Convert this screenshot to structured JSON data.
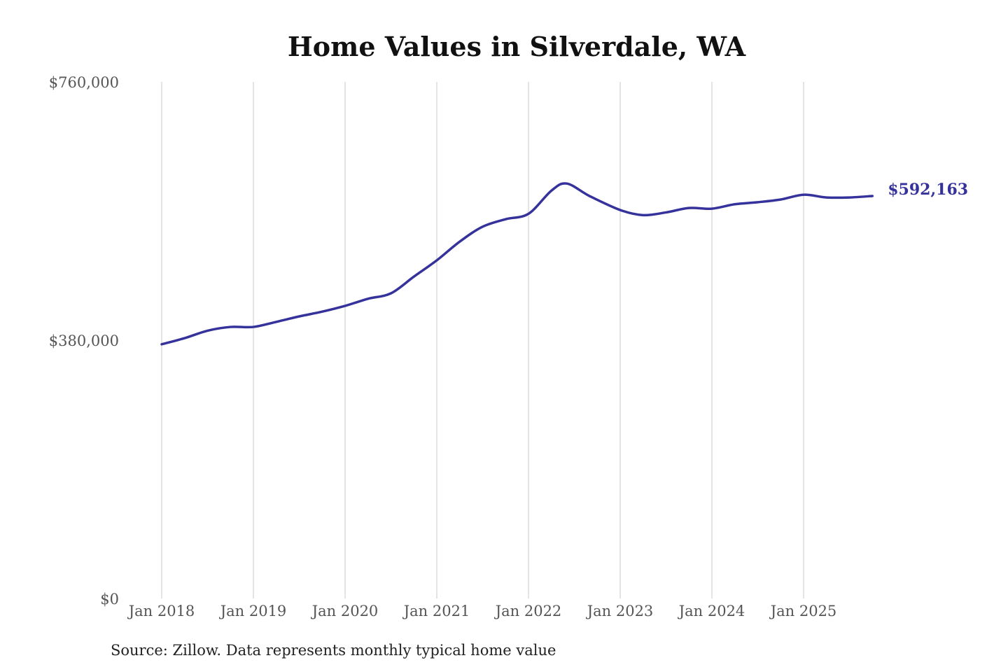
{
  "chart_data": {
    "type": "line",
    "title": "Home Values in Silverdale, WA",
    "source": "Source: Zillow. Data represents monthly typical home value",
    "xlabel": "",
    "ylabel": "",
    "ylim": [
      0,
      760000
    ],
    "yticks": [
      0,
      380000,
      760000
    ],
    "ytick_labels": [
      "$0",
      "$380,000",
      "$760,000"
    ],
    "xticks": [
      "2018-01",
      "2019-01",
      "2020-01",
      "2021-01",
      "2022-01",
      "2023-01",
      "2024-01",
      "2025-01"
    ],
    "xtick_labels": [
      "Jan 2018",
      "Jan 2019",
      "Jan 2020",
      "Jan 2021",
      "Jan 2022",
      "Jan 2023",
      "Jan 2024",
      "Jan 2025"
    ],
    "grid": "vertical",
    "line_color": "#35329c",
    "end_label": "$592,163",
    "x": [
      "2018-01",
      "2018-04",
      "2018-07",
      "2018-10",
      "2019-01",
      "2019-04",
      "2019-07",
      "2019-10",
      "2020-01",
      "2020-04",
      "2020-07",
      "2020-10",
      "2021-01",
      "2021-04",
      "2021-07",
      "2021-10",
      "2022-01",
      "2022-04",
      "2022-06",
      "2022-09",
      "2023-01",
      "2023-04",
      "2023-07",
      "2023-10",
      "2024-01",
      "2024-04",
      "2024-07",
      "2024-10",
      "2025-01",
      "2025-04",
      "2025-07",
      "2025-10"
    ],
    "values": [
      374000,
      383000,
      394000,
      399500,
      399500,
      407000,
      415000,
      422000,
      430500,
      441000,
      449000,
      473500,
      497500,
      525000,
      547000,
      558000,
      566000,
      600000,
      610500,
      592000,
      571500,
      564000,
      568000,
      574500,
      573500,
      580000,
      583000,
      587000,
      594000,
      590000,
      590000,
      592163
    ]
  }
}
